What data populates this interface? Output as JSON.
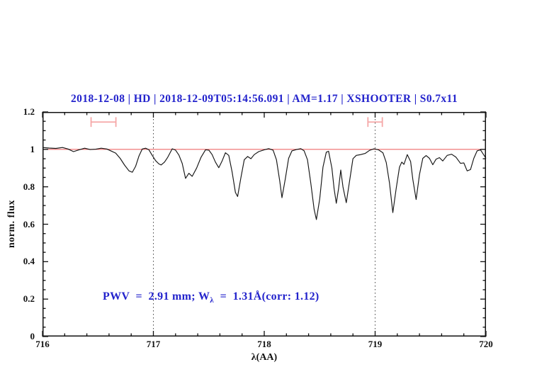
{
  "title": "2018-12-08 | HD | 2018-12-09T05:14:56.091 | AM=1.17 | XSHOOTER | S0.7x11",
  "annotation": {
    "part1": "PWV  =  2.91 mm; W",
    "sub": "λ",
    "part2": "  =  1.31Å(corr: 1.12)"
  },
  "colors": {
    "title_blue": "#2323cc",
    "annotation_blue": "#2323cc",
    "continuum_red": "#ef6a6a",
    "marker_pink": "#f5a7a7",
    "spectrum_black": "#151515",
    "axis_black": "#111111",
    "dotted_gray": "#444444"
  },
  "chart_data": {
    "type": "line",
    "title": "2018-12-08 | HD | 2018-12-09T05:14:56.091 | AM=1.17 | XSHOOTER | S0.7x11",
    "xlabel": "λ(AA)",
    "ylabel": "norm. flux",
    "xlim": [
      716,
      720
    ],
    "ylim": [
      0,
      1.2
    ],
    "x_major_ticks": [
      716,
      717,
      718,
      719,
      720
    ],
    "x_tick_labels": [
      "716",
      "717",
      "718",
      "719",
      "720"
    ],
    "x_minor_step": 0.2,
    "y_major_ticks": [
      0,
      0.2,
      0.4,
      0.6,
      0.8,
      1.0,
      1.2
    ],
    "y_tick_labels": [
      "0",
      "0.2",
      "0.4",
      "0.6",
      "0.8",
      "1",
      "1.2"
    ],
    "y_minor_step": 0.05,
    "grid": "off",
    "legend": "none",
    "vlines_dotted": [
      717,
      719
    ],
    "annotation_text": "PWV = 2.91 mm; W_λ = 1.31Å(corr: 1.12)",
    "interval_markers": [
      {
        "x_center": 716.55,
        "x_half_width": 0.112,
        "y": 1.146,
        "cap_half_height": 0.026
      },
      {
        "x_center": 719.0,
        "x_half_width": 0.065,
        "y": 1.146,
        "cap_half_height": 0.026
      }
    ],
    "series": [
      {
        "name": "continuum-fit",
        "color": "#ef6a6a",
        "width": 1.1,
        "points": [
          [
            716.0,
            1.0
          ],
          [
            720.0,
            1.0
          ]
        ]
      },
      {
        "name": "observed-spectrum",
        "color": "#151515",
        "width": 1.15,
        "points": [
          [
            716.0,
            1.01
          ],
          [
            716.06,
            1.007
          ],
          [
            716.12,
            1.005
          ],
          [
            716.18,
            1.01
          ],
          [
            716.23,
            1.002
          ],
          [
            716.28,
            0.988
          ],
          [
            716.33,
            0.998
          ],
          [
            716.38,
            1.006
          ],
          [
            716.43,
            0.999
          ],
          [
            716.48,
            1.001
          ],
          [
            716.53,
            1.006
          ],
          [
            716.58,
            1.002
          ],
          [
            716.62,
            0.991
          ],
          [
            716.66,
            0.98
          ],
          [
            716.7,
            0.952
          ],
          [
            716.74,
            0.916
          ],
          [
            716.78,
            0.885
          ],
          [
            716.81,
            0.878
          ],
          [
            716.84,
            0.91
          ],
          [
            716.87,
            0.965
          ],
          [
            716.9,
            1.002
          ],
          [
            716.93,
            1.006
          ],
          [
            716.96,
            0.998
          ],
          [
            716.99,
            0.968
          ],
          [
            717.02,
            0.94
          ],
          [
            717.05,
            0.922
          ],
          [
            717.07,
            0.917
          ],
          [
            717.1,
            0.932
          ],
          [
            717.13,
            0.958
          ],
          [
            717.17,
            1.003
          ],
          [
            717.2,
            0.996
          ],
          [
            717.23,
            0.97
          ],
          [
            717.26,
            0.925
          ],
          [
            717.29,
            0.845
          ],
          [
            717.32,
            0.872
          ],
          [
            717.35,
            0.856
          ],
          [
            717.39,
            0.9
          ],
          [
            717.43,
            0.958
          ],
          [
            717.47,
            0.998
          ],
          [
            717.5,
            0.996
          ],
          [
            717.53,
            0.972
          ],
          [
            717.56,
            0.932
          ],
          [
            717.59,
            0.902
          ],
          [
            717.62,
            0.938
          ],
          [
            717.65,
            0.982
          ],
          [
            717.68,
            0.968
          ],
          [
            717.71,
            0.88
          ],
          [
            717.74,
            0.77
          ],
          [
            717.76,
            0.748
          ],
          [
            717.79,
            0.85
          ],
          [
            717.82,
            0.945
          ],
          [
            717.85,
            0.962
          ],
          [
            717.88,
            0.95
          ],
          [
            717.91,
            0.972
          ],
          [
            717.95,
            0.988
          ],
          [
            718.0,
            0.998
          ],
          [
            718.04,
            1.004
          ],
          [
            718.08,
            0.996
          ],
          [
            718.11,
            0.945
          ],
          [
            718.14,
            0.83
          ],
          [
            718.16,
            0.742
          ],
          [
            718.19,
            0.842
          ],
          [
            718.22,
            0.952
          ],
          [
            718.25,
            0.992
          ],
          [
            718.29,
            0.999
          ],
          [
            718.33,
            1.004
          ],
          [
            718.36,
            0.992
          ],
          [
            718.39,
            0.945
          ],
          [
            718.42,
            0.82
          ],
          [
            718.45,
            0.68
          ],
          [
            718.47,
            0.625
          ],
          [
            718.5,
            0.735
          ],
          [
            718.53,
            0.905
          ],
          [
            718.56,
            0.985
          ],
          [
            718.58,
            0.99
          ],
          [
            718.61,
            0.9
          ],
          [
            718.63,
            0.79
          ],
          [
            718.65,
            0.712
          ],
          [
            718.67,
            0.79
          ],
          [
            718.69,
            0.89
          ],
          [
            718.71,
            0.8
          ],
          [
            718.74,
            0.715
          ],
          [
            718.77,
            0.832
          ],
          [
            718.8,
            0.95
          ],
          [
            718.83,
            0.968
          ],
          [
            718.87,
            0.972
          ],
          [
            718.91,
            0.978
          ],
          [
            718.95,
            0.995
          ],
          [
            718.99,
            1.003
          ],
          [
            719.03,
            0.998
          ],
          [
            719.07,
            0.982
          ],
          [
            719.1,
            0.93
          ],
          [
            719.13,
            0.82
          ],
          [
            719.16,
            0.662
          ],
          [
            719.19,
            0.79
          ],
          [
            719.22,
            0.905
          ],
          [
            719.24,
            0.932
          ],
          [
            719.26,
            0.92
          ],
          [
            719.29,
            0.972
          ],
          [
            719.32,
            0.935
          ],
          [
            719.34,
            0.84
          ],
          [
            719.37,
            0.732
          ],
          [
            719.4,
            0.865
          ],
          [
            719.43,
            0.952
          ],
          [
            719.46,
            0.967
          ],
          [
            719.49,
            0.952
          ],
          [
            719.52,
            0.918
          ],
          [
            719.55,
            0.948
          ],
          [
            719.58,
            0.956
          ],
          [
            719.61,
            0.938
          ],
          [
            719.65,
            0.968
          ],
          [
            719.69,
            0.974
          ],
          [
            719.73,
            0.958
          ],
          [
            719.77,
            0.925
          ],
          [
            719.8,
            0.928
          ],
          [
            719.83,
            0.885
          ],
          [
            719.86,
            0.892
          ],
          [
            719.89,
            0.952
          ],
          [
            719.92,
            0.992
          ],
          [
            719.95,
            0.998
          ],
          [
            720.0,
            0.952
          ]
        ]
      }
    ]
  }
}
